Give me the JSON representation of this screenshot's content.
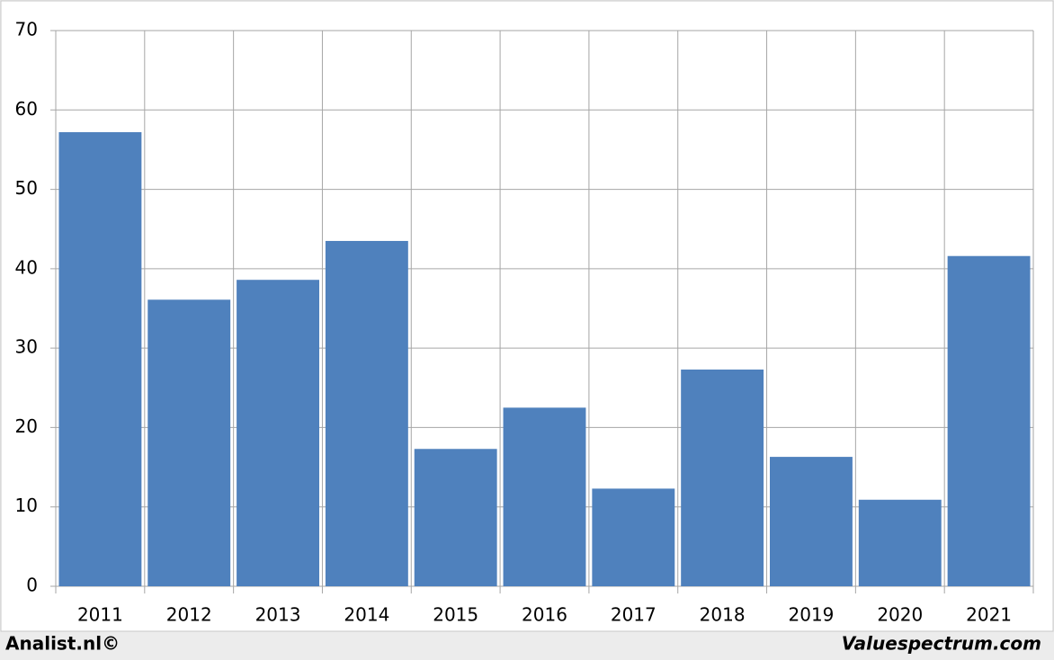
{
  "chart_data": {
    "type": "bar",
    "categories": [
      "2011",
      "2012",
      "2013",
      "2014",
      "2015",
      "2016",
      "2017",
      "2018",
      "2019",
      "2020",
      "2021"
    ],
    "values": [
      57.2,
      36.1,
      38.6,
      43.5,
      17.3,
      22.5,
      12.3,
      27.3,
      16.3,
      10.9,
      41.6
    ],
    "color": "#4f81bd",
    "ylim": [
      0,
      70
    ],
    "yticks": [
      0,
      10,
      20,
      30,
      40,
      50,
      60,
      70
    ],
    "grid": true
  },
  "footer": {
    "left": "Analist.nl©",
    "right": "Valuespectrum.com"
  }
}
